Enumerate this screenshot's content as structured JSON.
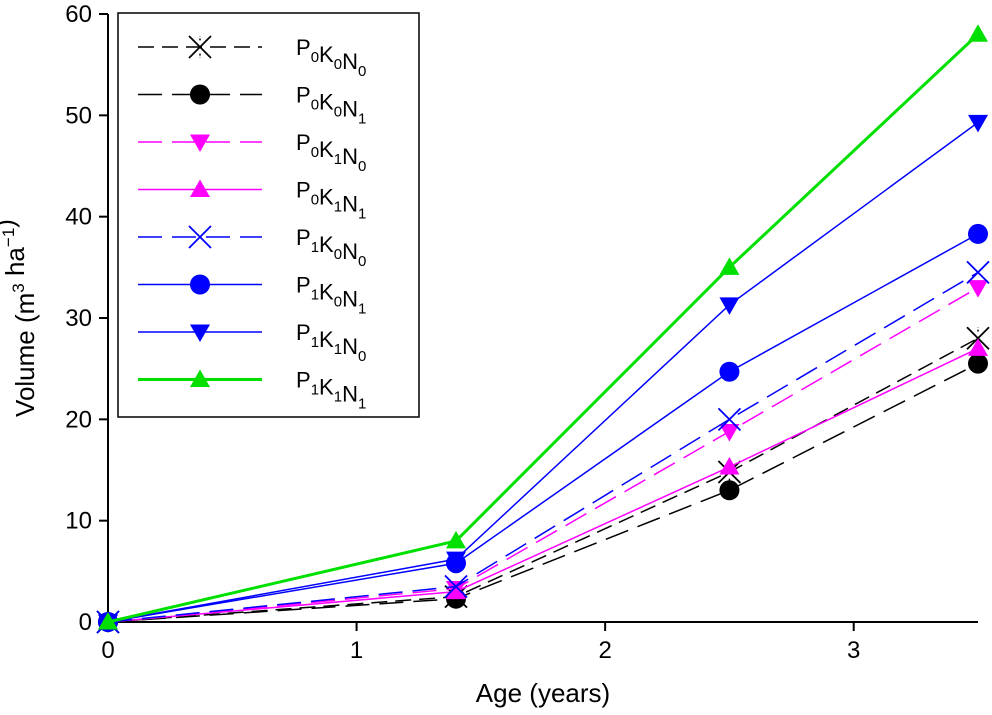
{
  "chart_data": {
    "type": "line",
    "xlabel": "Age (years)",
    "ylabel": "Volume (m<sup>3</sup> ha<sup>−1</sup>)",
    "xlim": [
      0,
      3.5
    ],
    "ylim": [
      0,
      60
    ],
    "xticks": [
      "0",
      "1",
      "2",
      "3"
    ],
    "yticks": [
      "0",
      "10",
      "20",
      "30",
      "40",
      "50",
      "60"
    ],
    "grid": false,
    "legend_position": "top-left",
    "x": [
      0,
      1.4,
      2.5,
      3.5
    ],
    "series": [
      {
        "name": "P0K0N0",
        "label_parts": [
          [
            "P",
            "0"
          ],
          [
            "K",
            "0"
          ],
          [
            "N",
            "0"
          ]
        ],
        "values": [
          0,
          2.5,
          14.8,
          28.0
        ],
        "color": "#000000",
        "dash": "dashed",
        "marker": "x-star",
        "width": 1.5
      },
      {
        "name": "P0K0N1",
        "label_parts": [
          [
            "P",
            "0"
          ],
          [
            "K",
            "0"
          ],
          [
            "N",
            "1"
          ]
        ],
        "values": [
          0,
          2.3,
          13.0,
          25.5
        ],
        "color": "#000000",
        "dash": "longdash",
        "marker": "circle",
        "width": 1.5
      },
      {
        "name": "P0K1N0",
        "label_parts": [
          [
            "P",
            "0"
          ],
          [
            "K",
            "1"
          ],
          [
            "N",
            "0"
          ]
        ],
        "values": [
          0,
          3.3,
          18.8,
          33.0
        ],
        "color": "#ff00ff",
        "dash": "longdash",
        "marker": "triangle-down",
        "width": 1.5
      },
      {
        "name": "P0K1N1",
        "label_parts": [
          [
            "P",
            "0"
          ],
          [
            "K",
            "1"
          ],
          [
            "N",
            "1"
          ]
        ],
        "values": [
          0,
          3.0,
          15.3,
          27.0
        ],
        "color": "#ff00ff",
        "dash": "solid",
        "marker": "triangle-up",
        "width": 1.5
      },
      {
        "name": "P1K0N0",
        "label_parts": [
          [
            "P",
            "1"
          ],
          [
            "K",
            "0"
          ],
          [
            "N",
            "0"
          ]
        ],
        "values": [
          0,
          3.5,
          20.0,
          34.5
        ],
        "color": "#0000ff",
        "dash": "longdash",
        "marker": "x",
        "width": 1.5
      },
      {
        "name": "P1K0N1",
        "label_parts": [
          [
            "P",
            "1"
          ],
          [
            "K",
            "0"
          ],
          [
            "N",
            "1"
          ]
        ],
        "values": [
          0,
          5.8,
          24.7,
          38.3
        ],
        "color": "#0000ff",
        "dash": "solid",
        "marker": "circle",
        "width": 1.5
      },
      {
        "name": "P1K1N0",
        "label_parts": [
          [
            "P",
            "1"
          ],
          [
            "K",
            "1"
          ],
          [
            "N",
            "0"
          ]
        ],
        "values": [
          0,
          6.2,
          31.3,
          49.3
        ],
        "color": "#0000ff",
        "dash": "solid",
        "marker": "triangle-down",
        "width": 1.5
      },
      {
        "name": "P1K1N1",
        "label_parts": [
          [
            "P",
            "1"
          ],
          [
            "K",
            "1"
          ],
          [
            "N",
            "1"
          ]
        ],
        "values": [
          0,
          8.0,
          35.0,
          58.0
        ],
        "color": "#00e000",
        "dash": "solid",
        "marker": "triangle-up",
        "width": 3
      }
    ]
  }
}
